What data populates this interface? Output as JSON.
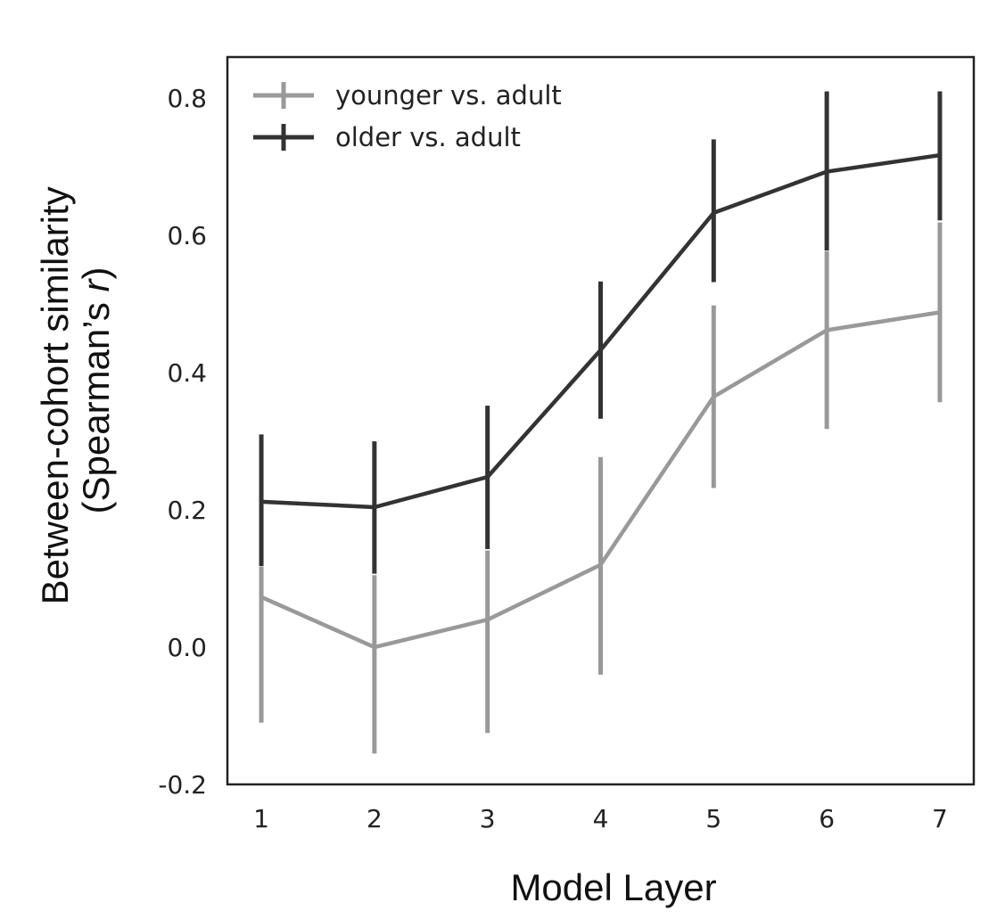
{
  "chart_data": {
    "type": "line",
    "xlabel": "Model Layer",
    "ylabel_line1": "Between-cohort similarity",
    "ylabel_line2_prefix": "(Spearman’s ",
    "ylabel_line2_var": "r",
    "ylabel_line2_suffix": ")",
    "x": [
      1,
      2,
      3,
      4,
      5,
      6,
      7
    ],
    "x_tick_labels": [
      "1",
      "2",
      "3",
      "4",
      "5",
      "6",
      "7"
    ],
    "y_ticks": [
      -0.2,
      0.0,
      0.2,
      0.4,
      0.6,
      0.8
    ],
    "y_tick_labels": [
      "-0.2",
      "0.0",
      "0.2",
      "0.4",
      "0.6",
      "0.8"
    ],
    "ylim": [
      -0.2,
      0.86
    ],
    "xlim": [
      0.7,
      7.3
    ],
    "grid": false,
    "legend_position": "top-left",
    "series": [
      {
        "name": "younger vs. adult",
        "color": "#999999",
        "values": [
          0.073,
          0.0,
          0.04,
          0.12,
          0.365,
          0.462,
          0.488
        ],
        "err_low": [
          -0.11,
          -0.155,
          -0.125,
          -0.04,
          0.232,
          0.318,
          0.357
        ],
        "err_high": [
          0.117,
          0.105,
          0.141,
          0.277,
          0.498,
          0.577,
          0.619
        ]
      },
      {
        "name": "older vs. adult",
        "color": "#333333",
        "values": [
          0.212,
          0.204,
          0.248,
          0.433,
          0.633,
          0.693,
          0.717
        ],
        "err_low": [
          0.118,
          0.107,
          0.143,
          0.333,
          0.532,
          0.578,
          0.622
        ],
        "err_high": [
          0.31,
          0.3,
          0.352,
          0.533,
          0.74,
          0.81,
          0.81
        ]
      }
    ]
  }
}
